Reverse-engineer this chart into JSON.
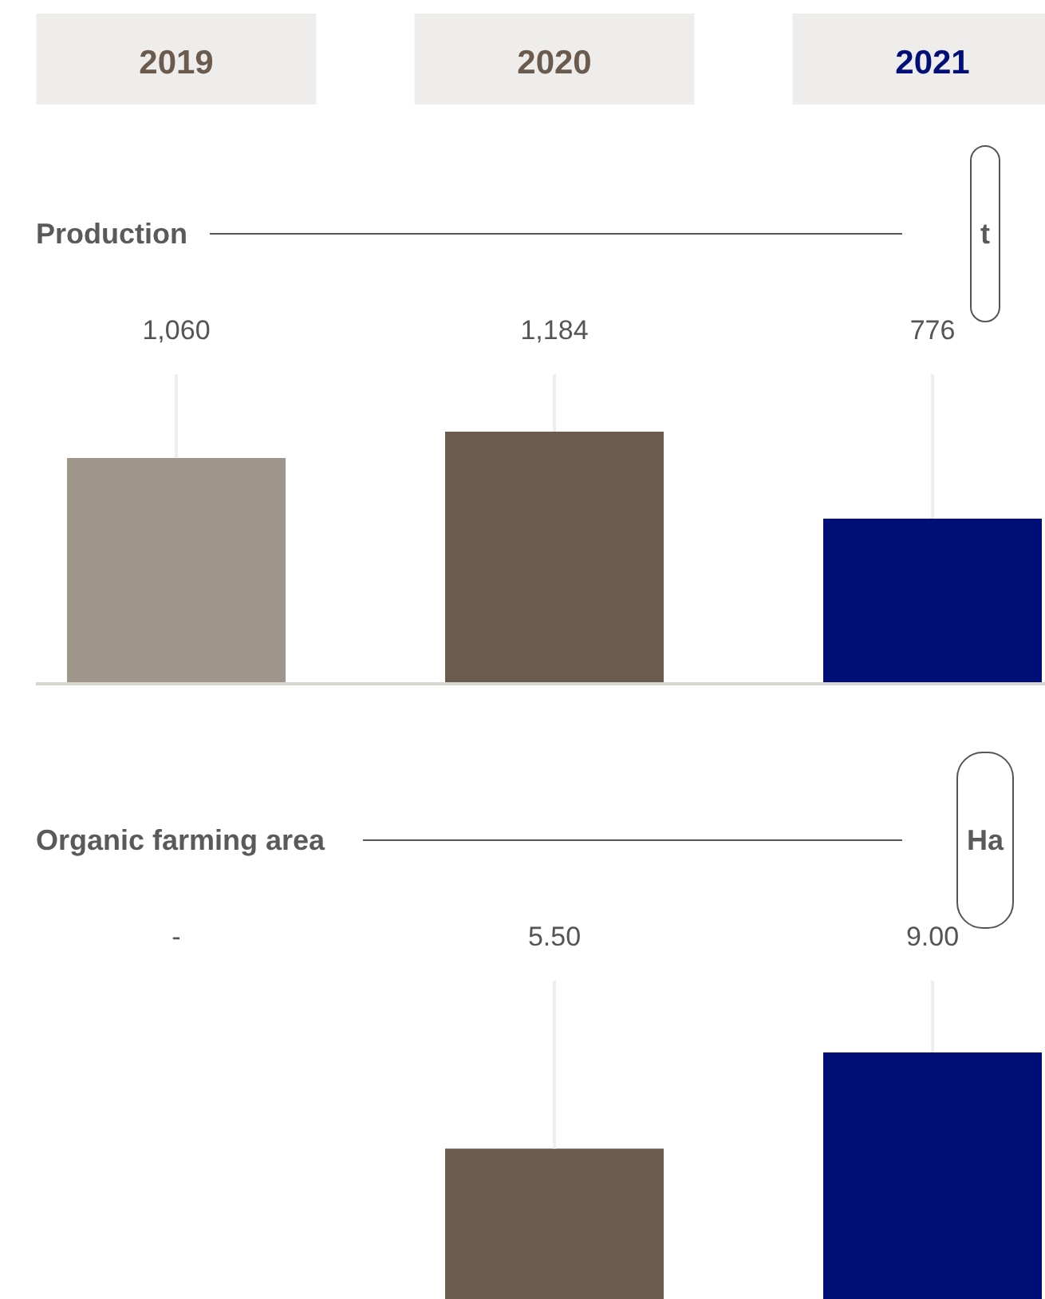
{
  "chart_data": [
    {
      "type": "bar",
      "title": "Production",
      "ylabel": "t",
      "categories": [
        "2019",
        "2020",
        "2021"
      ],
      "values": [
        1060,
        1184,
        776
      ],
      "colors": [
        "#a0958b",
        "#6b5b4e",
        "#000f78"
      ],
      "value_labels": [
        "1,060",
        "1,184",
        "776"
      ],
      "tick_labels": "x"
    },
    {
      "type": "bar",
      "title": "Organic farming area",
      "ylabel": "Ha",
      "categories": [
        "2019",
        "2020",
        "2021"
      ],
      "values": [
        null,
        5.5,
        9.0
      ],
      "colors": [
        "#a0958b",
        "#6b5b4e",
        "#000f78"
      ],
      "value_labels": [
        "-",
        "5.50",
        "9.00"
      ],
      "tick_labels": false
    }
  ]
}
